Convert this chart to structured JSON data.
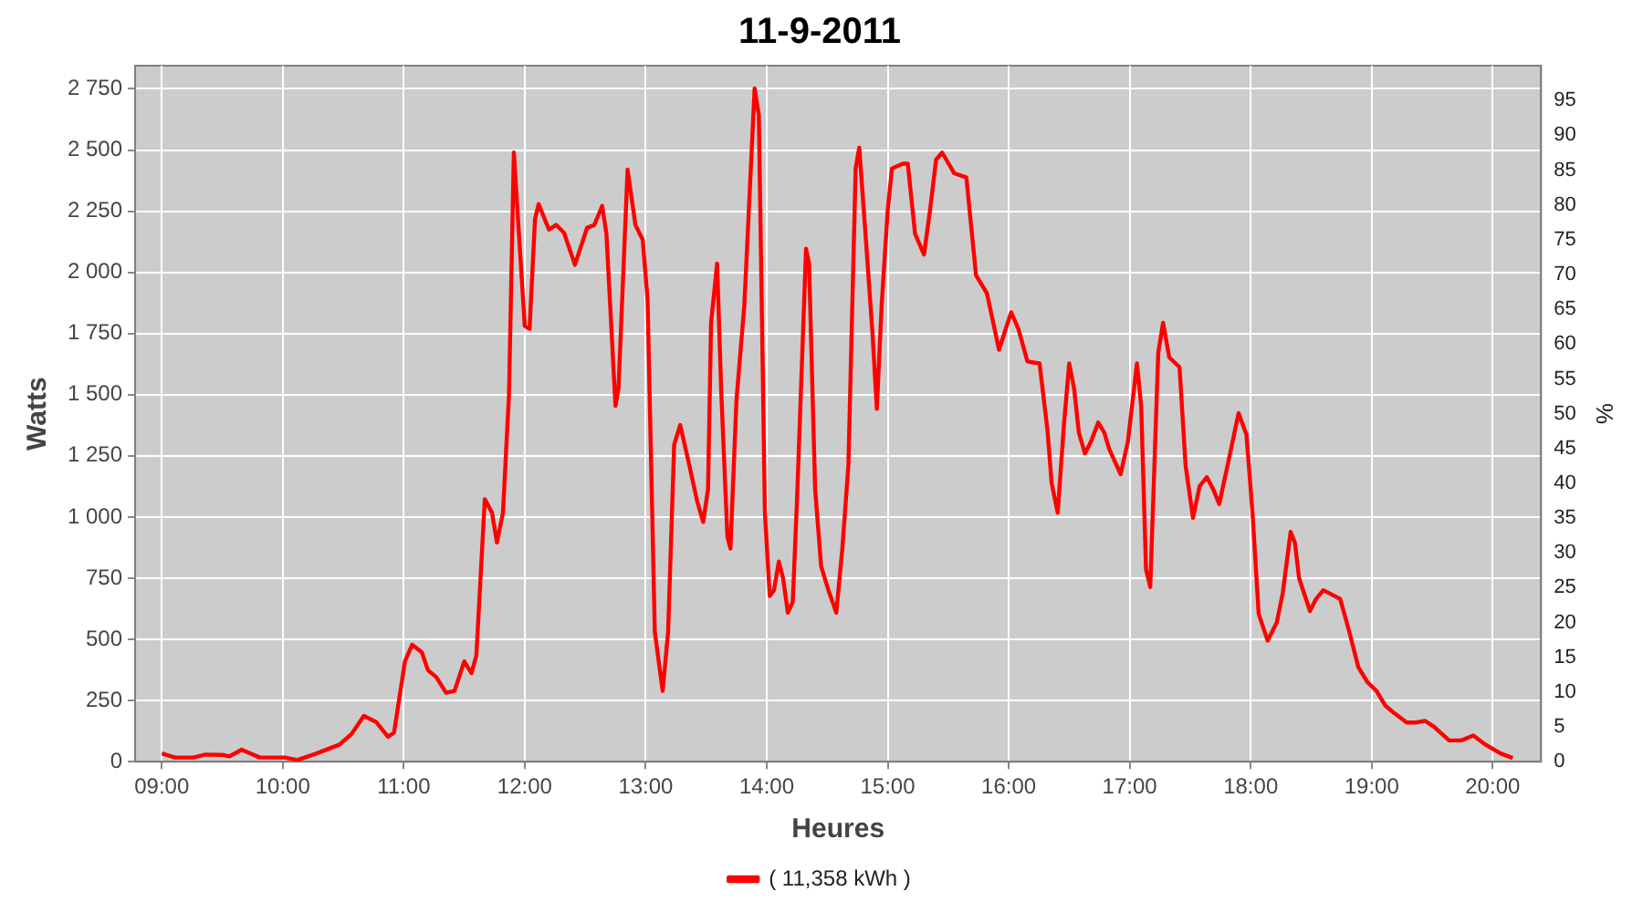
{
  "chart_data": {
    "type": "line",
    "title": "11-9-2011",
    "xlabel": "Heures",
    "ylabel": "Watts",
    "y2label": "%",
    "xlim": [
      8.78,
      20.4
    ],
    "xticks": [
      {
        "value": 9,
        "label": "09:00"
      },
      {
        "value": 10,
        "label": "10:00"
      },
      {
        "value": 11,
        "label": "11:00"
      },
      {
        "value": 12,
        "label": "12:00"
      },
      {
        "value": 13,
        "label": "13:00"
      },
      {
        "value": 14,
        "label": "14:00"
      },
      {
        "value": 15,
        "label": "15:00"
      },
      {
        "value": 16,
        "label": "16:00"
      },
      {
        "value": 17,
        "label": "17:00"
      },
      {
        "value": 18,
        "label": "18:00"
      },
      {
        "value": 19,
        "label": "19:00"
      },
      {
        "value": 20,
        "label": "20:00"
      }
    ],
    "ylim": [
      0,
      2845
    ],
    "yticks": [
      0,
      250,
      500,
      750,
      {
        "value": 1000,
        "label": "1 000"
      },
      {
        "value": 1250,
        "label": "1 250"
      },
      {
        "value": 1500,
        "label": "1 500"
      },
      {
        "value": 1750,
        "label": "1 750"
      },
      {
        "value": 2000,
        "label": "2 000"
      },
      {
        "value": 2250,
        "label": "2 250"
      },
      {
        "value": 2500,
        "label": "2 500"
      },
      {
        "value": 2750,
        "label": "2 750"
      }
    ],
    "y2lim": [
      0,
      100
    ],
    "y2ticks": [
      0,
      5,
      10,
      15,
      20,
      25,
      30,
      35,
      40,
      45,
      50,
      55,
      60,
      65,
      70,
      75,
      80,
      85,
      90,
      95
    ],
    "grid": true,
    "legend": "bottom",
    "marker": "none",
    "line_style": "solid",
    "series": [
      {
        "name": "( 11,358 kWh )",
        "color": "#ff0000",
        "x": [
          9.0,
          9.11,
          9.26,
          9.36,
          9.5,
          9.56,
          9.66,
          9.81,
          10.02,
          10.12,
          10.27,
          10.47,
          10.57,
          10.67,
          10.77,
          10.87,
          10.92,
          11.01,
          11.07,
          11.15,
          11.2,
          11.27,
          11.35,
          11.42,
          11.5,
          11.56,
          11.6,
          11.67,
          11.73,
          11.77,
          11.82,
          11.87,
          11.91,
          12.0,
          12.04,
          12.085,
          12.115,
          12.2,
          12.26,
          12.325,
          12.415,
          12.515,
          12.575,
          12.64,
          12.675,
          12.75,
          12.775,
          12.85,
          12.915,
          12.975,
          13.015,
          13.075,
          13.14,
          13.185,
          13.235,
          13.285,
          13.35,
          13.425,
          13.475,
          13.515,
          13.54,
          13.59,
          13.625,
          13.675,
          13.7,
          13.75,
          13.815,
          13.9,
          13.935,
          13.985,
          14.025,
          14.06,
          14.1,
          14.135,
          14.175,
          14.215,
          14.25,
          14.325,
          14.35,
          14.4,
          14.45,
          14.51,
          14.575,
          14.625,
          14.675,
          14.735,
          14.765,
          14.825,
          14.875,
          14.91,
          14.95,
          15.0,
          15.035,
          15.125,
          15.166,
          15.226,
          15.3,
          15.35,
          15.4,
          15.45,
          15.55,
          15.65,
          15.73,
          15.82,
          15.92,
          16.02,
          16.08,
          16.155,
          16.255,
          16.32,
          16.355,
          16.405,
          16.457,
          16.5,
          16.54,
          16.58,
          16.63,
          16.68,
          16.74,
          16.79,
          16.83,
          16.925,
          16.985,
          17.06,
          17.095,
          17.135,
          17.17,
          17.236,
          17.276,
          17.327,
          17.412,
          17.462,
          17.523,
          17.578,
          17.638,
          17.69,
          17.74,
          17.814,
          17.9,
          17.965,
          18.015,
          18.066,
          18.14,
          18.215,
          18.265,
          18.33,
          18.365,
          18.4,
          18.49,
          18.54,
          18.6,
          18.74,
          18.815,
          18.89,
          18.965,
          19.04,
          19.115,
          19.19,
          19.29,
          19.365,
          19.44,
          19.515,
          19.64,
          19.74,
          19.84,
          19.94,
          20.065,
          20.165
        ],
        "values": [
          34,
          17,
          17,
          29,
          28,
          22,
          49,
          17,
          17,
          7,
          32,
          70,
          114,
          187,
          163,
          102,
          119,
          410,
          478,
          447,
          374,
          345,
          282,
          289,
          410,
          362,
          434,
          1073,
          1017,
          896,
          1017,
          1502,
          2490,
          1781,
          1769,
          2218,
          2279,
          2175,
          2194,
          2162,
          2031,
          2182,
          2194,
          2272,
          2158,
          1454,
          1527,
          2420,
          2194,
          2133,
          1891,
          531,
          289,
          531,
          1296,
          1376,
          1235,
          1065,
          980,
          1114,
          1794,
          2036,
          1502,
          920,
          871,
          1478,
          1866,
          2752,
          2643,
          1017,
          677,
          701,
          818,
          750,
          609,
          653,
          1065,
          2097,
          2036,
          1114,
          798,
          701,
          609,
          871,
          1211,
          2425,
          2510,
          2097,
          1745,
          1442,
          1866,
          2255,
          2425,
          2444,
          2444,
          2158,
          2073,
          2255,
          2461,
          2490,
          2405,
          2388,
          1988,
          1915,
          1684,
          1837,
          1769,
          1636,
          1628,
          1357,
          1138,
          1017,
          1381,
          1628,
          1527,
          1345,
          1260,
          1308,
          1386,
          1345,
          1279,
          1175,
          1308,
          1628,
          1454,
          786,
          714,
          1672,
          1794,
          1653,
          1612,
          1211,
          997,
          1126,
          1163,
          1114,
          1053,
          1223,
          1425,
          1337,
          1017,
          604,
          495,
          568,
          689,
          939,
          896,
          750,
          616,
          665,
          701,
          665,
          531,
          386,
          325,
          289,
          228,
          197,
          160,
          160,
          167,
          143,
          87,
          87,
          107,
          70,
          34,
          15
        ]
      }
    ]
  }
}
